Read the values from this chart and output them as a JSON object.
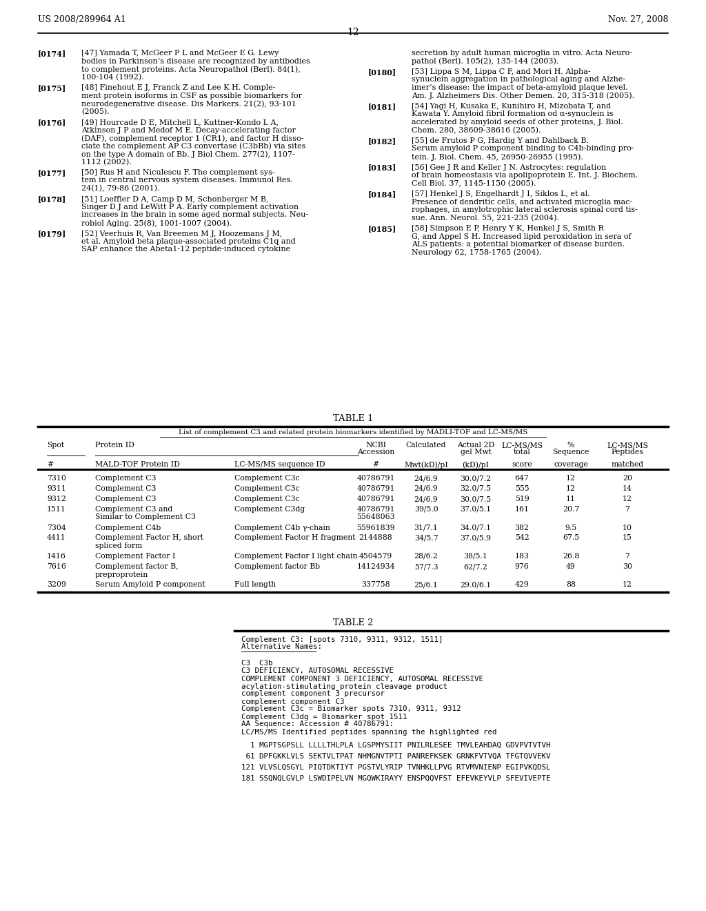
{
  "header_left": "US 2008/289964 A1",
  "header_right": "Nov. 27, 2008",
  "page_number": "12",
  "background_color": "#ffffff",
  "left_refs": [
    {
      "num": "[0174]",
      "lines": [
        "[47] Yamada T, McGeer P L and McGeer E G. Lewy",
        "bodies in Parkinson’s disease are recognized by antibodies",
        "to complement proteins. Acta Neuropathol (Berl). 84(1),",
        "100-104 (1992)."
      ]
    },
    {
      "num": "[0175]",
      "lines": [
        "[48] Finehout E J, Franck Z and Lee K H. Comple-",
        "ment protein isoforms in CSF as possible biomarkers for",
        "neurodegenerative disease. Dis Markers. 21(2), 93-101",
        "(2005)."
      ]
    },
    {
      "num": "[0176]",
      "lines": [
        "[49] Hourcade D E, Mitchell L, Kuttner-Kondo L A,",
        "Atkinson J P and Medof M E. Decay-accelerating factor",
        "(DAF), complement receptor 1 (CR1), and factor H disso-",
        "ciate the complement AP C3 convertase (C3bBb) via sites",
        "on the type A domain of Bb. J Biol Chem. 277(2), 1107-",
        "1112 (2002)."
      ]
    },
    {
      "num": "[0177]",
      "lines": [
        "[50] Rus H and Niculescu F. The complement sys-",
        "tem in central nervous system diseases. Immunol Res.",
        "24(1), 79-86 (2001)."
      ]
    },
    {
      "num": "[0178]",
      "lines": [
        "[51] Loeffler D A, Camp D M, Schonberger M B,",
        "Singer D J and LeWitt P A. Early complement activation",
        "increases in the brain in some aged normal subjects. Neu-",
        "robiol Aging. 25(8), 1001-1007 (2004)."
      ]
    },
    {
      "num": "[0179]",
      "lines": [
        "[52] Veerhuis R, Van Breemen M J, Hoozemans J M,",
        "et al. Amyloid beta plaque-associated proteins C1q and",
        "SAP enhance the Abeta1-12 peptide-induced cytokine"
      ]
    }
  ],
  "right_refs": [
    {
      "num": "",
      "lines": [
        "secretion by adult human microglia in vitro. Acta Neuro-",
        "pathol (Berl). 105(2), 135-144 (2003)."
      ]
    },
    {
      "num": "[0180]",
      "lines": [
        "[53] Lippa S M, Lippa C F, and Mori H. Alpha-",
        "synuclein aggregation in pathological aging and Alzhe-",
        "imer’s disease: the impact of beta-amyloid plaque level.",
        "Am. J. Alzheimers Dis. Other Demen. 20, 315-318 (2005)."
      ]
    },
    {
      "num": "[0181]",
      "lines": [
        "[54] Yagi H, Kusaka E, Kunihiro H, Mizobata T, and",
        "Kawata Y. Amyloid fibril formation od α-synuclein is",
        "accelerated by amyloid seeds of other proteins, J. Biol.",
        "Chem. 280, 38609-38616 (2005)."
      ]
    },
    {
      "num": "[0182]",
      "lines": [
        "[55] de Frutos P G, Hardig Y and Dahlback B.",
        "Serum amyloid P component binding to C4b-binding pro-",
        "tein. J. Biol. Chem. 45, 26950-26955 (1995)."
      ]
    },
    {
      "num": "[0183]",
      "lines": [
        "[56] Gee J R and Keller J N. Astrocytes: regulation",
        "of brain homeostasis via apolipoprotein E. Int. J. Biochem.",
        "Cell Biol. 37, 1145-1150 (2005)."
      ]
    },
    {
      "num": "[0184]",
      "lines": [
        "[57] Henkel J S, Engelhardt J I, Siklos L, et al.",
        "Presence of dendritic cells, and activated microglia mac-",
        "rophages, in amylotrophic lateral sclerosis spinal cord tis-",
        "sue. Ann. Neurol. 55, 221-235 (2004)."
      ]
    },
    {
      "num": "[0185]",
      "lines": [
        "[58] Simpson E P, Henry Y K, Henkel J S, Smith R",
        "G, and Appel S H. Increased lipid peroxidation in sera of",
        "ALS patients: a potential biomarker of disease burden.",
        "Neurology 62, 1758-1765 (2004)."
      ]
    }
  ],
  "table1_title": "TABLE 1",
  "table1_subtitle": "List of complement C3 and related protein biomarkers identified by MADLI-TOF and LC-MS/MS",
  "table1_rows": [
    [
      "7310",
      "Complement C3",
      "Complement C3c",
      "40786791",
      "24/6.9",
      "30.0/7.2",
      "647",
      "12",
      "20"
    ],
    [
      "9311",
      "Complement C3",
      "Complement C3c",
      "40786791",
      "24/6.9",
      "32.0/7.5",
      "555",
      "12",
      "14"
    ],
    [
      "9312",
      "Complement C3",
      "Complement C3c",
      "40786791",
      "24/6.9",
      "30.0/7.5",
      "519",
      "11",
      "12"
    ],
    [
      "1511",
      "Complement C3 and\nSimilar to Complement C3",
      "Complement C3dg",
      "40786791\n55648063",
      "39/5.0",
      "37.0/5.1",
      "161",
      "20.7",
      "7"
    ],
    [
      "7304",
      "Complement C4b",
      "Complement C4b γ-chain",
      "55961839",
      "31/7.1",
      "34.0/7.1",
      "382",
      "9.5",
      "10"
    ],
    [
      "4411",
      "Complement Factor H, short\nspliced form",
      "Complement Factor H fragment",
      "2144888",
      "34/5.7",
      "37.0/5.9",
      "542",
      "67.5",
      "15"
    ],
    [
      "1416",
      "Complement Factor I",
      "Complement Factor I light chain",
      "4504579",
      "28/6.2",
      "38/5.1",
      "183",
      "26.8",
      "7"
    ],
    [
      "7616",
      "Complement factor B,\npreproprotein",
      "Complement factor Bb",
      "14124934",
      "57/7.3",
      "62/7.2",
      "976",
      "49",
      "30"
    ],
    [
      "3209",
      "Serum Amyloid P component",
      "Full length",
      "337758",
      "25/6.1",
      "29.0/6.1",
      "429",
      "88",
      "12"
    ]
  ],
  "table2_title": "TABLE 2",
  "table2_lines": [
    "Complement C3: [spots 7310, 9311, 9312, 1511]",
    "Alternative Names:",
    "",
    "C3  C3b",
    "C3 DEFICIENCY, AUTOSOMAL RECESSIVE",
    "COMPLEMENT COMPONENT 3 DEFICIENCY, AUTOSOMAL RECESSIVE",
    "acylation-stimulating protein cleavage product",
    "complement component 3 precursor",
    "complement component C3",
    "Complement C3c = Biomarker spots 7310, 9311, 9312",
    "Complement C3dg = Biomarker spot 1511",
    "AA Sequence: Accession # 40786791:",
    "LC/MS/MS Identified peptides spanning the highlighted red"
  ],
  "table2_seqs": [
    "  1 MGPTSGPSLL LLLLTHLPLA LGSPMYSIIT PNILRLESEE TMVLEAHDAQ GDVPVTVTVH",
    " 61 DPFGKKLVLS SEKTVLTPAT NHMGNVTPTI PANREFKSEK GRNKFVTVQA TFGTQVVEKV",
    "121 VLVSLQSGYL PIQTDKTIYT PGSTVLYRIP TVNHKLLPVG RTVMVNIENP EGIPVKQDSL",
    "181 SSQNQLGVLP LSWDIPELVN MGQWKIRAYY ENSPQQVFST EFEVKEYVLP SFEVIVEPTE"
  ]
}
